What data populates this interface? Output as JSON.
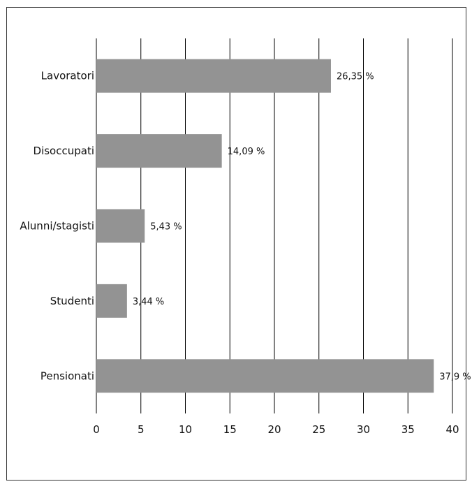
{
  "chart_data": {
    "type": "bar",
    "orientation": "horizontal",
    "categories": [
      "Lavoratori",
      "Disoccupati",
      "Alunni/stagisti",
      "Studenti",
      "Pensionati"
    ],
    "values": [
      26.35,
      14.09,
      5.43,
      3.44,
      37.9
    ],
    "value_labels": [
      "26,35 %",
      "14,09 %",
      "5,43 %",
      "3,44 %",
      "37,9 %"
    ],
    "xlim": [
      0,
      40
    ],
    "x_ticks": [
      0,
      5,
      10,
      15,
      20,
      25,
      30,
      35,
      40
    ],
    "x_tick_labels": [
      "0",
      "5",
      "10",
      "15",
      "20",
      "25",
      "30",
      "35",
      "40"
    ],
    "grid": "vertical",
    "bar_color": "#939393",
    "grid_color": "#000000"
  }
}
